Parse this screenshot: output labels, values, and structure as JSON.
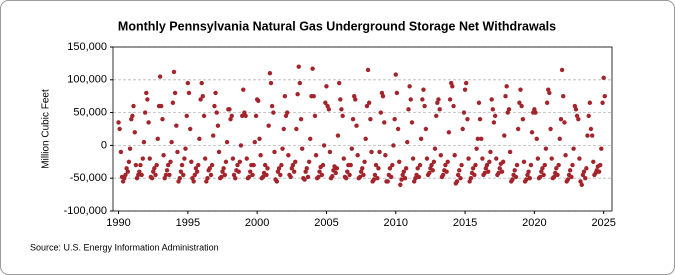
{
  "chart_data": {
    "type": "scatter",
    "title": "Monthly Pennsylvania Natural Gas Underground Storage Net Withdrawals",
    "y_label": "Million Cubic Feet",
    "source": "Source: U.S. Energy Information Administration",
    "color": "#a3242b",
    "grid": true,
    "xlim": [
      1989.6,
      2025.6
    ],
    "xticks": [
      1990,
      1995,
      2000,
      2005,
      2010,
      2015,
      2020,
      2025
    ],
    "ylim": [
      -100000,
      150000
    ],
    "yticks": [
      {
        "value": -100000,
        "label": "-100,000"
      },
      {
        "value": -50000,
        "label": "-50,000"
      },
      0,
      {
        "value": 50000,
        "label": "50,000"
      },
      {
        "value": 100000,
        "label": "100,000"
      },
      {
        "value": 150000,
        "label": "150,000"
      }
    ],
    "x": [
      1990.0,
      1990.08,
      1990.17,
      1990.25,
      1990.33,
      1990.42,
      1990.5,
      1990.58,
      1990.67,
      1990.75,
      1990.83,
      1990.92,
      1991.0,
      1991.08,
      1991.17,
      1991.25,
      1991.33,
      1991.42,
      1991.5,
      1991.58,
      1991.67,
      1991.75,
      1991.83,
      1991.92,
      1992.0,
      1992.08,
      1992.17,
      1992.25,
      1992.33,
      1992.42,
      1992.5,
      1992.58,
      1992.67,
      1992.75,
      1992.83,
      1992.92,
      1993.0,
      1993.08,
      1993.17,
      1993.25,
      1993.33,
      1993.42,
      1993.5,
      1993.58,
      1993.67,
      1993.75,
      1993.83,
      1993.92,
      1994.0,
      1994.08,
      1994.17,
      1994.25,
      1994.33,
      1994.42,
      1994.5,
      1994.58,
      1994.67,
      1994.75,
      1994.83,
      1994.92,
      1995.0,
      1995.08,
      1995.17,
      1995.25,
      1995.33,
      1995.42,
      1995.5,
      1995.58,
      1995.67,
      1995.75,
      1995.83,
      1995.92,
      1996.0,
      1996.08,
      1996.17,
      1996.25,
      1996.33,
      1996.42,
      1996.5,
      1996.58,
      1996.67,
      1996.75,
      1996.83,
      1996.92,
      1997.0,
      1997.08,
      1997.17,
      1997.25,
      1997.33,
      1997.42,
      1997.5,
      1997.58,
      1997.67,
      1997.75,
      1997.83,
      1997.92,
      1998.0,
      1998.08,
      1998.17,
      1998.25,
      1998.33,
      1998.42,
      1998.5,
      1998.58,
      1998.67,
      1998.75,
      1998.83,
      1998.92,
      1999.0,
      1999.08,
      1999.17,
      1999.25,
      1999.33,
      1999.42,
      1999.5,
      1999.58,
      1999.67,
      1999.75,
      1999.83,
      1999.92,
      2000.0,
      2000.08,
      2000.17,
      2000.25,
      2000.33,
      2000.42,
      2000.5,
      2000.58,
      2000.67,
      2000.75,
      2000.83,
      2000.92,
      2001.0,
      2001.08,
      2001.17,
      2001.25,
      2001.33,
      2001.42,
      2001.5,
      2001.58,
      2001.67,
      2001.75,
      2001.83,
      2001.92,
      2002.0,
      2002.08,
      2002.17,
      2002.25,
      2002.33,
      2002.42,
      2002.5,
      2002.58,
      2002.67,
      2002.75,
      2002.83,
      2002.92,
      2003.0,
      2003.08,
      2003.17,
      2003.25,
      2003.33,
      2003.42,
      2003.5,
      2003.58,
      2003.67,
      2003.75,
      2003.83,
      2003.92,
      2004.0,
      2004.08,
      2004.17,
      2004.25,
      2004.33,
      2004.42,
      2004.5,
      2004.58,
      2004.67,
      2004.75,
      2004.83,
      2004.92,
      2005.0,
      2005.08,
      2005.17,
      2005.25,
      2005.33,
      2005.42,
      2005.5,
      2005.58,
      2005.67,
      2005.75,
      2005.83,
      2005.92,
      2006.0,
      2006.08,
      2006.17,
      2006.25,
      2006.33,
      2006.42,
      2006.5,
      2006.58,
      2006.67,
      2006.75,
      2006.83,
      2006.92,
      2007.0,
      2007.08,
      2007.17,
      2007.25,
      2007.33,
      2007.42,
      2007.5,
      2007.58,
      2007.67,
      2007.75,
      2007.83,
      2007.92,
      2008.0,
      2008.08,
      2008.17,
      2008.25,
      2008.33,
      2008.42,
      2008.5,
      2008.58,
      2008.67,
      2008.75,
      2008.83,
      2008.92,
      2009.0,
      2009.08,
      2009.17,
      2009.25,
      2009.33,
      2009.42,
      2009.5,
      2009.58,
      2009.67,
      2009.75,
      2009.83,
      2009.92,
      2010.0,
      2010.08,
      2010.17,
      2010.25,
      2010.33,
      2010.42,
      2010.5,
      2010.58,
      2010.67,
      2010.75,
      2010.83,
      2010.92,
      2011.0,
      2011.08,
      2011.17,
      2011.25,
      2011.33,
      2011.42,
      2011.5,
      2011.58,
      2011.67,
      2011.75,
      2011.83,
      2011.92,
      2012.0,
      2012.08,
      2012.17,
      2012.25,
      2012.33,
      2012.42,
      2012.5,
      2012.58,
      2012.67,
      2012.75,
      2012.83,
      2012.92,
      2013.0,
      2013.08,
      2013.17,
      2013.25,
      2013.33,
      2013.42,
      2013.5,
      2013.58,
      2013.67,
      2013.75,
      2013.83,
      2013.92,
      2014.0,
      2014.08,
      2014.17,
      2014.25,
      2014.33,
      2014.42,
      2014.5,
      2014.58,
      2014.67,
      2014.75,
      2014.83,
      2014.92,
      2015.0,
      2015.08,
      2015.17,
      2015.25,
      2015.33,
      2015.42,
      2015.5,
      2015.58,
      2015.67,
      2015.75,
      2015.83,
      2015.92,
      2016.0,
      2016.08,
      2016.17,
      2016.25,
      2016.33,
      2016.42,
      2016.5,
      2016.58,
      2016.67,
      2016.75,
      2016.83,
      2016.92,
      2017.0,
      2017.08,
      2017.17,
      2017.25,
      2017.33,
      2017.42,
      2017.5,
      2017.58,
      2017.67,
      2017.75,
      2017.83,
      2017.92,
      2018.0,
      2018.08,
      2018.17,
      2018.25,
      2018.33,
      2018.42,
      2018.5,
      2018.58,
      2018.67,
      2018.75,
      2018.83,
      2018.92,
      2019.0,
      2019.08,
      2019.17,
      2019.25,
      2019.33,
      2019.42,
      2019.5,
      2019.58,
      2019.67,
      2019.75,
      2019.83,
      2019.92,
      2020.0,
      2020.08,
      2020.17,
      2020.25,
      2020.33,
      2020.42,
      2020.5,
      2020.58,
      2020.67,
      2020.75,
      2020.83,
      2020.92,
      2021.0,
      2021.08,
      2021.17,
      2021.25,
      2021.33,
      2021.42,
      2021.5,
      2021.58,
      2021.67,
      2021.75,
      2021.83,
      2021.92,
      2022.0,
      2022.08,
      2022.17,
      2022.25,
      2022.33,
      2022.42,
      2022.5,
      2022.58,
      2022.67,
      2022.75,
      2022.83,
      2022.92,
      2023.0,
      2023.08,
      2023.17,
      2023.25,
      2023.33,
      2023.42,
      2023.5,
      2023.58,
      2023.67,
      2023.75,
      2023.83,
      2023.92,
      2024.0,
      2024.08,
      2024.17,
      2024.25,
      2024.33,
      2024.42,
      2024.5,
      2024.58,
      2024.67,
      2024.75,
      2024.83,
      2024.92,
      2025.0,
      2025.08
    ],
    "values": [
      35000,
      25000,
      -10000,
      -48000,
      -55000,
      -50000,
      -45000,
      -35000,
      -40000,
      -25000,
      -5000,
      40000,
      45000,
      60000,
      20000,
      -30000,
      -50000,
      -45000,
      -40000,
      -30000,
      -45000,
      -20000,
      5000,
      50000,
      80000,
      70000,
      35000,
      -20000,
      -48000,
      -50000,
      -40000,
      -35000,
      -45000,
      -30000,
      10000,
      60000,
      105000,
      60000,
      40000,
      -15000,
      -50000,
      -45000,
      -38000,
      -30000,
      -45000,
      -25000,
      5000,
      65000,
      112000,
      80000,
      30000,
      -10000,
      -55000,
      -50000,
      -40000,
      -30000,
      -45000,
      -20000,
      -5000,
      45000,
      95000,
      80000,
      25000,
      -25000,
      -50000,
      -55000,
      -45000,
      -35000,
      -40000,
      -30000,
      10000,
      70000,
      95000,
      75000,
      45000,
      -20000,
      -55000,
      -50000,
      -38000,
      -35000,
      -45000,
      -30000,
      15000,
      60000,
      80000,
      50000,
      30000,
      -10000,
      -50000,
      -48000,
      -40000,
      -35000,
      -45000,
      -25000,
      5000,
      55000,
      55000,
      40000,
      45000,
      -20000,
      -45000,
      -50000,
      -38000,
      -30000,
      -40000,
      -25000,
      0,
      45000,
      85000,
      50000,
      45000,
      -20000,
      -50000,
      -48000,
      -40000,
      -30000,
      -45000,
      -30000,
      5000,
      45000,
      70000,
      68000,
      10000,
      -15000,
      -50000,
      -48000,
      -42000,
      -30000,
      -45000,
      -35000,
      30000,
      110000,
      95000,
      60000,
      50000,
      -10000,
      -52000,
      -55000,
      -40000,
      -35000,
      -45000,
      -30000,
      -5000,
      25000,
      75000,
      45000,
      50000,
      -15000,
      -45000,
      -48000,
      -35000,
      -30000,
      -40000,
      -25000,
      25000,
      78000,
      120000,
      95000,
      40000,
      -5000,
      -50000,
      -52000,
      -40000,
      -35000,
      -48000,
      -25000,
      10000,
      75000,
      117000,
      75000,
      45000,
      -15000,
      -50000,
      -48000,
      -40000,
      -33000,
      -45000,
      -30000,
      0,
      65000,
      90000,
      60000,
      55000,
      -10000,
      -50000,
      -47000,
      -38000,
      -32000,
      -42000,
      -35000,
      15000,
      95000,
      70000,
      55000,
      45000,
      -20000,
      -48000,
      -50000,
      -40000,
      -30000,
      -45000,
      -30000,
      -5000,
      40000,
      75000,
      70000,
      30000,
      -15000,
      -50000,
      -48000,
      -40000,
      -35000,
      -45000,
      -25000,
      10000,
      60000,
      115000,
      65000,
      40000,
      -10000,
      -55000,
      -52000,
      -45000,
      -30000,
      -50000,
      -35000,
      -10000,
      50000,
      80000,
      75000,
      35000,
      -15000,
      -55000,
      -55000,
      -45000,
      -35000,
      -48000,
      -30000,
      0,
      40000,
      108000,
      80000,
      25000,
      -25000,
      -60000,
      -52000,
      -45000,
      -40000,
      -50000,
      -35000,
      5000,
      55000,
      90000,
      70000,
      35000,
      -20000,
      -55000,
      -50000,
      -45000,
      -35000,
      -48000,
      -30000,
      10000,
      70000,
      85000,
      60000,
      25000,
      -20000,
      -45000,
      -42000,
      -35000,
      -30000,
      -38000,
      -25000,
      -5000,
      45000,
      65000,
      70000,
      55000,
      -15000,
      -48000,
      -45000,
      -38000,
      -30000,
      -40000,
      -25000,
      20000,
      70000,
      95000,
      90000,
      60000,
      -15000,
      -58000,
      -55000,
      -45000,
      -38000,
      -50000,
      -30000,
      25000,
      50000,
      85000,
      95000,
      40000,
      -20000,
      -55000,
      -50000,
      -42000,
      -35000,
      -45000,
      -30000,
      -5000,
      10000,
      65000,
      40000,
      10000,
      -20000,
      -45000,
      -42000,
      -35000,
      -30000,
      -40000,
      -25000,
      -10000,
      70000,
      55000,
      35000,
      45000,
      -20000,
      -45000,
      -42000,
      -35000,
      -28000,
      -40000,
      -25000,
      15000,
      75000,
      90000,
      50000,
      55000,
      -10000,
      -55000,
      -52000,
      -45000,
      -38000,
      -48000,
      -30000,
      25000,
      65000,
      85000,
      60000,
      40000,
      -25000,
      -55000,
      -52000,
      -45000,
      -40000,
      -50000,
      -30000,
      20000,
      50000,
      55000,
      50000,
      10000,
      -20000,
      -50000,
      -48000,
      -40000,
      -35000,
      -45000,
      -30000,
      -5000,
      65000,
      85000,
      80000,
      25000,
      -20000,
      -50000,
      -48000,
      -42000,
      -35000,
      -45000,
      -30000,
      10000,
      40000,
      115000,
      75000,
      35000,
      -15000,
      -55000,
      -52000,
      -45000,
      -38000,
      -48000,
      -30000,
      -5000,
      60000,
      55000,
      45000,
      40000,
      -20000,
      -55000,
      -60000,
      -45000,
      -40000,
      -50000,
      -35000,
      15000,
      45000,
      65000,
      25000,
      15000,
      -25000,
      -45000,
      -42000,
      -38000,
      -32000,
      -40000,
      -30000,
      -5000,
      65000,
      103000,
      75000
    ]
  }
}
